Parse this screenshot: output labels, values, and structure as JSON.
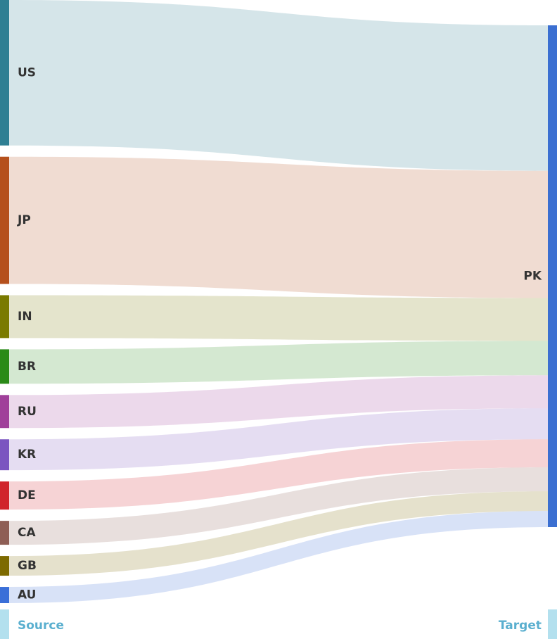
{
  "chart_data": {
    "type": "sankey",
    "sources": [
      "US",
      "JP",
      "IN",
      "BR",
      "RU",
      "KR",
      "DE",
      "CA",
      "GB",
      "AU"
    ],
    "values": [
      207,
      181,
      61,
      49,
      47,
      44,
      40,
      34,
      28,
      23
    ],
    "colors": [
      "#2f7f93",
      "#b5501c",
      "#7a7a00",
      "#2a8a17",
      "#a0409a",
      "#7b55c0",
      "#d0242b",
      "#8e5e55",
      "#7d6a00",
      "#3a6fd8"
    ],
    "target": "PK",
    "target_color": "#3b6fd1",
    "column_labels": [
      "Source",
      "Target"
    ]
  }
}
